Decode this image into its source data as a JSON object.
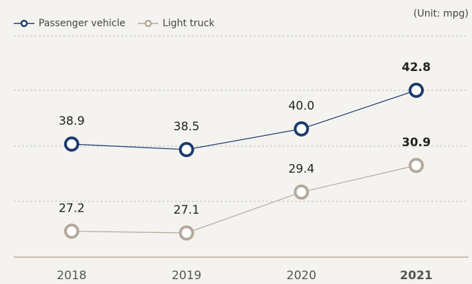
{
  "chart_data": {
    "type": "line",
    "unit": "(Unit: mpg)",
    "categories": [
      "2018",
      "2019",
      "2020",
      "2021"
    ],
    "series": [
      {
        "name": "Passenger vehicle",
        "color": "#1b3a6d",
        "values": [
          38.9,
          38.5,
          40.0,
          42.8
        ],
        "value_labels": [
          "38.9",
          "38.5",
          "40.0",
          "42.8"
        ]
      },
      {
        "name": "Light truck",
        "color": "#b3a899",
        "values": [
          27.2,
          27.1,
          29.4,
          30.9
        ],
        "value_labels": [
          "27.2",
          "27.1",
          "29.4",
          "30.9"
        ]
      }
    ],
    "grid": true
  }
}
